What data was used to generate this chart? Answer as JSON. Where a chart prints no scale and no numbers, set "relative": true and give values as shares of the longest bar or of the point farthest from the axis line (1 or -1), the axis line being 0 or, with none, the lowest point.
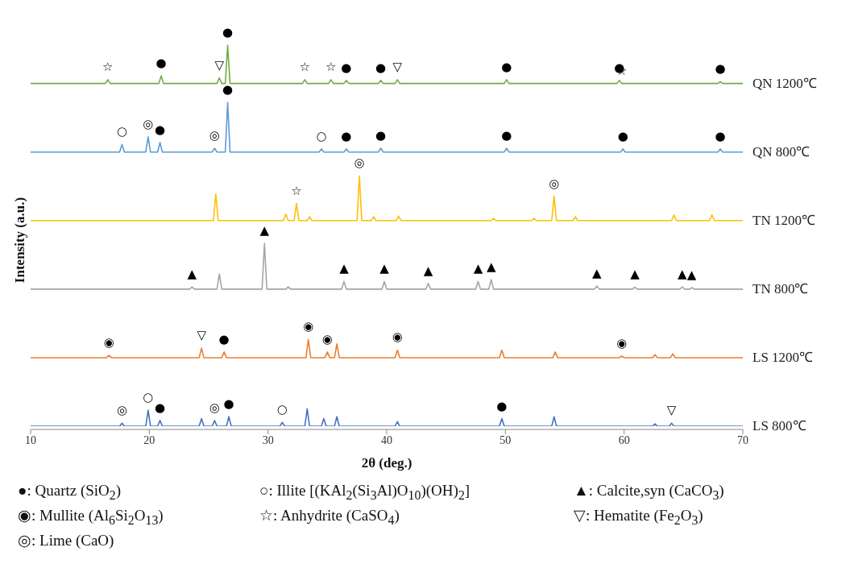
{
  "chart_data": {
    "type": "line",
    "xlabel": "2θ (deg.)",
    "ylabel": "Intensity (a.u.)",
    "xlim": [
      10,
      70
    ],
    "xticks": [
      10,
      20,
      30,
      40,
      50,
      60,
      70
    ],
    "relative": true,
    "tick_labels": "x",
    "series": [
      {
        "name": "QN 1200℃",
        "color": "#70ad47",
        "x": [
          10,
          16.3,
          16.5,
          16.7,
          20.8,
          21.0,
          21.2,
          25.7,
          25.9,
          26.1,
          26.4,
          26.6,
          26.8,
          32.9,
          33.1,
          33.3,
          35.1,
          35.3,
          35.5,
          36.4,
          36.6,
          36.8,
          39.3,
          39.5,
          39.7,
          40.7,
          40.9,
          41.1,
          49.9,
          50.1,
          50.3,
          59.4,
          59.6,
          59.8,
          67.9,
          68.1,
          68.3,
          70
        ],
        "values": [
          0.9,
          0.9,
          0.91,
          0.9,
          0.9,
          0.92,
          0.9,
          0.9,
          0.915,
          0.9,
          0.9,
          1.0,
          0.9,
          0.9,
          0.91,
          0.9,
          0.9,
          0.91,
          0.9,
          0.9,
          0.908,
          0.9,
          0.9,
          0.908,
          0.9,
          0.9,
          0.91,
          0.9,
          0.9,
          0.91,
          0.9,
          0.9,
          0.908,
          0.9,
          0.9,
          0.905,
          0.9,
          0.9
        ]
      },
      {
        "name": "QN 800℃",
        "color": "#5b9bd5",
        "x": [
          10,
          17.5,
          17.7,
          17.9,
          19.7,
          19.9,
          20.1,
          20.7,
          20.9,
          21.1,
          25.3,
          25.5,
          25.7,
          26.4,
          26.6,
          26.8,
          34.3,
          34.5,
          34.7,
          36.4,
          36.6,
          36.8,
          39.3,
          39.5,
          39.7,
          49.9,
          50.1,
          50.3,
          59.7,
          59.9,
          60.1,
          67.9,
          68.1,
          68.3,
          70
        ],
        "values": [
          0.72,
          0.72,
          0.74,
          0.72,
          0.72,
          0.76,
          0.72,
          0.72,
          0.745,
          0.72,
          0.72,
          0.73,
          0.72,
          0.72,
          0.85,
          0.72,
          0.72,
          0.728,
          0.72,
          0.72,
          0.728,
          0.72,
          0.72,
          0.73,
          0.72,
          0.72,
          0.73,
          0.72,
          0.72,
          0.728,
          0.72,
          0.72,
          0.728,
          0.72,
          0.72
        ]
      },
      {
        "name": "TN 1200℃",
        "color": "#ffc000",
        "x": [
          10,
          25.4,
          25.6,
          25.8,
          31.3,
          31.5,
          31.7,
          32.2,
          32.4,
          32.6,
          33.3,
          33.5,
          33.7,
          37.5,
          37.7,
          37.9,
          38.7,
          38.9,
          39.1,
          40.8,
          41.0,
          41.2,
          48.8,
          49.0,
          49.2,
          52.2,
          52.4,
          52.6,
          53.9,
          54.1,
          54.3,
          55.7,
          55.9,
          56.1,
          64.0,
          64.2,
          64.4,
          67.2,
          67.4,
          67.6,
          70
        ],
        "values": [
          0.54,
          0.54,
          0.61,
          0.54,
          0.54,
          0.557,
          0.54,
          0.54,
          0.585,
          0.54,
          0.54,
          0.55,
          0.54,
          0.54,
          0.657,
          0.54,
          0.54,
          0.55,
          0.54,
          0.54,
          0.552,
          0.54,
          0.54,
          0.546,
          0.54,
          0.54,
          0.546,
          0.54,
          0.54,
          0.604,
          0.54,
          0.54,
          0.55,
          0.54,
          0.54,
          0.555,
          0.54,
          0.54,
          0.555,
          0.54,
          0.54
        ]
      },
      {
        "name": "TN 800℃",
        "color": "#a5a5a5",
        "x": [
          10,
          23.4,
          23.6,
          23.8,
          25.7,
          25.9,
          26.1,
          29.5,
          29.7,
          29.9,
          31.5,
          31.7,
          31.9,
          36.2,
          36.4,
          36.6,
          39.6,
          39.8,
          40.0,
          43.3,
          43.5,
          43.7,
          47.5,
          47.7,
          47.9,
          48.6,
          48.8,
          49.0,
          57.5,
          57.7,
          57.9,
          60.7,
          60.9,
          61.1,
          64.7,
          64.9,
          65.1,
          65.5,
          65.7,
          65.9,
          70
        ],
        "values": [
          0.36,
          0.36,
          0.366,
          0.36,
          0.36,
          0.4,
          0.36,
          0.36,
          0.48,
          0.36,
          0.36,
          0.366,
          0.36,
          0.36,
          0.38,
          0.36,
          0.36,
          0.38,
          0.36,
          0.36,
          0.375,
          0.36,
          0.36,
          0.38,
          0.36,
          0.36,
          0.385,
          0.36,
          0.36,
          0.368,
          0.36,
          0.36,
          0.365,
          0.36,
          0.36,
          0.366,
          0.36,
          0.36,
          0.364,
          0.36,
          0.36
        ]
      },
      {
        "name": "LS 1200℃",
        "color": "#ed7d31",
        "x": [
          10,
          16.4,
          16.6,
          16.8,
          24.2,
          24.4,
          24.6,
          26.1,
          26.3,
          26.5,
          33.2,
          33.4,
          33.6,
          34.8,
          35.0,
          35.2,
          35.6,
          35.8,
          36.0,
          40.7,
          40.9,
          41.1,
          49.5,
          49.7,
          49.9,
          54.0,
          54.2,
          54.4,
          59.6,
          59.8,
          60.0,
          62.4,
          62.6,
          62.8,
          63.9,
          64.1,
          64.3,
          70
        ],
        "values": [
          0.18,
          0.18,
          0.186,
          0.18,
          0.18,
          0.205,
          0.18,
          0.18,
          0.195,
          0.18,
          0.18,
          0.228,
          0.18,
          0.18,
          0.195,
          0.18,
          0.18,
          0.216,
          0.18,
          0.18,
          0.2,
          0.18,
          0.18,
          0.2,
          0.18,
          0.18,
          0.195,
          0.18,
          0.18,
          0.184,
          0.18,
          0.18,
          0.188,
          0.18,
          0.18,
          0.19,
          0.18,
          0.18
        ]
      },
      {
        "name": "LS 800℃",
        "color": "#4472c4",
        "x": [
          10,
          17.5,
          17.7,
          17.9,
          19.7,
          19.9,
          20.1,
          20.7,
          20.9,
          21.1,
          24.2,
          24.4,
          24.6,
          25.3,
          25.5,
          25.7,
          26.5,
          26.7,
          26.9,
          31.0,
          31.2,
          31.4,
          33.1,
          33.3,
          33.5,
          34.5,
          34.7,
          34.9,
          35.6,
          35.8,
          36.0,
          40.7,
          40.9,
          41.1,
          49.5,
          49.7,
          49.9,
          53.9,
          54.1,
          54.3,
          62.4,
          62.6,
          62.8,
          63.8,
          64.0,
          64.2,
          70
        ],
        "values": [
          0,
          0,
          0.008,
          0,
          0,
          0.042,
          0,
          0,
          0.015,
          0,
          0,
          0.02,
          0,
          0,
          0.015,
          0,
          0,
          0.025,
          0,
          0,
          0.01,
          0,
          0,
          0.046,
          0,
          0,
          0.02,
          0,
          0,
          0.025,
          0,
          0,
          0.012,
          0,
          0,
          0.02,
          0,
          0,
          0.025,
          0,
          0,
          0.006,
          0,
          0,
          0.008,
          0,
          0
        ]
      }
    ],
    "annotations": [
      {
        "text": "☆",
        "x": 16.5,
        "y": 0.91
      },
      {
        "text": "●",
        "x": 21.0,
        "y": 0.92
      },
      {
        "text": "▽",
        "x": 25.9,
        "y": 0.915
      },
      {
        "text": "●",
        "x": 26.6,
        "y": 1.0
      },
      {
        "text": "☆",
        "x": 33.1,
        "y": 0.91
      },
      {
        "text": "☆",
        "x": 35.3,
        "y": 0.91
      },
      {
        "text": "●",
        "x": 36.6,
        "y": 0.908
      },
      {
        "text": "●",
        "x": 39.5,
        "y": 0.908
      },
      {
        "text": "▽",
        "x": 40.9,
        "y": 0.91
      },
      {
        "text": "●",
        "x": 50.1,
        "y": 0.91
      },
      {
        "text": "●",
        "x": 59.6,
        "y": 0.908
      },
      {
        "text": "☆",
        "x": 59.8,
        "y": 0.9
      },
      {
        "text": "●",
        "x": 68.1,
        "y": 0.905
      },
      {
        "text": "○",
        "x": 17.7,
        "y": 0.74
      },
      {
        "text": "◎",
        "x": 19.9,
        "y": 0.76
      },
      {
        "text": "●",
        "x": 20.9,
        "y": 0.745
      },
      {
        "text": "◎",
        "x": 25.5,
        "y": 0.73
      },
      {
        "text": "●",
        "x": 26.6,
        "y": 0.85
      },
      {
        "text": "○",
        "x": 34.5,
        "y": 0.728
      },
      {
        "text": "●",
        "x": 36.6,
        "y": 0.728
      },
      {
        "text": "●",
        "x": 39.5,
        "y": 0.73
      },
      {
        "text": "●",
        "x": 50.1,
        "y": 0.73
      },
      {
        "text": "●",
        "x": 59.9,
        "y": 0.728
      },
      {
        "text": "●",
        "x": 68.1,
        "y": 0.728
      },
      {
        "text": "☆",
        "x": 32.4,
        "y": 0.585
      },
      {
        "text": "◎",
        "x": 37.7,
        "y": 0.657
      },
      {
        "text": "◎",
        "x": 54.1,
        "y": 0.604
      },
      {
        "text": "▲",
        "x": 23.6,
        "y": 0.366
      },
      {
        "text": "▲",
        "x": 29.7,
        "y": 0.48
      },
      {
        "text": "▲",
        "x": 36.4,
        "y": 0.38
      },
      {
        "text": "▲",
        "x": 39.8,
        "y": 0.38
      },
      {
        "text": "▲",
        "x": 43.5,
        "y": 0.375
      },
      {
        "text": "▲",
        "x": 47.7,
        "y": 0.38
      },
      {
        "text": "▲",
        "x": 48.8,
        "y": 0.385
      },
      {
        "text": "▲",
        "x": 57.7,
        "y": 0.368
      },
      {
        "text": "▲",
        "x": 60.9,
        "y": 0.365
      },
      {
        "text": "▲",
        "x": 64.9,
        "y": 0.366
      },
      {
        "text": "▲",
        "x": 65.7,
        "y": 0.364
      },
      {
        "text": "◉",
        "x": 16.6,
        "y": 0.186
      },
      {
        "text": "▽",
        "x": 24.4,
        "y": 0.205
      },
      {
        "text": "●",
        "x": 26.3,
        "y": 0.195
      },
      {
        "text": "◉",
        "x": 33.4,
        "y": 0.228
      },
      {
        "text": "◉",
        "x": 35.0,
        "y": 0.195
      },
      {
        "text": "◉",
        "x": 40.9,
        "y": 0.2
      },
      {
        "text": "◉",
        "x": 59.8,
        "y": 0.184
      },
      {
        "text": "◎",
        "x": 17.7,
        "y": 0.008
      },
      {
        "text": "○",
        "x": 19.9,
        "y": 0.042
      },
      {
        "text": "●",
        "x": 20.9,
        "y": 0.015
      },
      {
        "text": "◎",
        "x": 25.5,
        "y": 0.015
      },
      {
        "text": "●",
        "x": 26.7,
        "y": 0.025
      },
      {
        "text": "○",
        "x": 31.2,
        "y": 0.01
      },
      {
        "text": "●",
        "x": 49.7,
        "y": 0.02
      },
      {
        "text": "▽",
        "x": 64.0,
        "y": 0.008
      },
      "●: Quartz (SiO$_{2}$)",
      "○: Illite [(KAl$_{2}$(Si$_{3}$Al)O$_{10}$)(OH)$_{2}$]",
      "▲: Calcite,syn (CaCO$_{3}$)",
      "◉: Mullite (Al$_{6}$Si$_{2}$O$_{13}$)",
      "☆: Anhydrite (CaSO$_{4}$)",
      "▽: Hematite (Fe$_{2}$O$_{3}$)",
      "◎: Lime (CaO)"
    ]
  }
}
